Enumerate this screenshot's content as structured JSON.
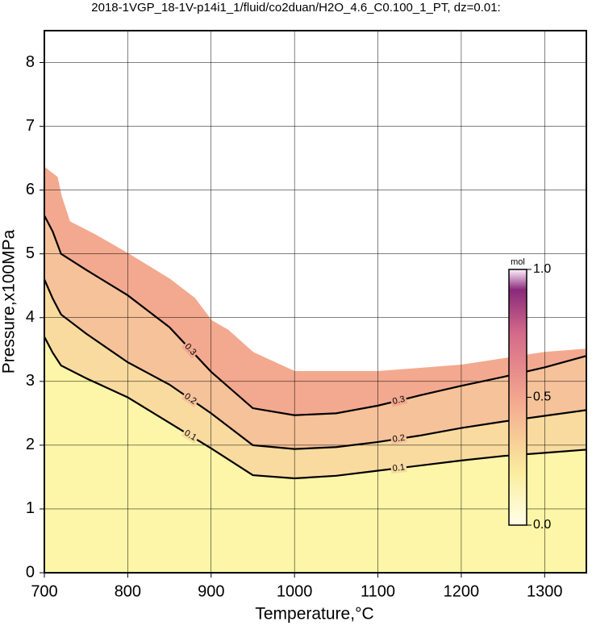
{
  "chart_data": {
    "type": "contour",
    "title": "2018-1VGP_18-1V-p14i1_1/fluid/co2duan/H2O_4.6_C0.100_1_PT, dz=0.01:",
    "x_label": "Temperature,°C",
    "y_label": "Pressure,x100MPa",
    "xlim": [
      700,
      1350
    ],
    "ylim": [
      0,
      8.5
    ],
    "xticks": [
      700,
      800,
      900,
      1000,
      1100,
      1200,
      1300
    ],
    "yticks": [
      0,
      1,
      2,
      3,
      4,
      5,
      6,
      7,
      8
    ],
    "grid": true,
    "boundary": {
      "x": [
        700,
        715,
        720,
        730,
        760,
        800,
        850,
        880,
        900,
        920,
        950,
        975,
        1000,
        1100,
        1200,
        1300,
        1350
      ],
      "y": [
        6.35,
        6.2,
        5.9,
        5.5,
        5.3,
        5.0,
        4.6,
        4.3,
        3.95,
        3.8,
        3.45,
        3.3,
        3.15,
        3.15,
        3.25,
        3.45,
        3.5
      ]
    },
    "contours": [
      {
        "level": 0.1,
        "color": "#000000",
        "x": [
          700,
          710,
          720,
          750,
          800,
          850,
          900,
          950,
          1000,
          1050,
          1100,
          1150,
          1200,
          1250,
          1300,
          1350
        ],
        "y": [
          3.7,
          3.45,
          3.25,
          3.05,
          2.75,
          2.35,
          1.95,
          1.53,
          1.48,
          1.52,
          1.6,
          1.68,
          1.76,
          1.83,
          1.88,
          1.93
        ]
      },
      {
        "level": 0.2,
        "color": "#000000",
        "x": [
          700,
          710,
          720,
          750,
          800,
          850,
          900,
          950,
          1000,
          1050,
          1100,
          1150,
          1200,
          1250,
          1300,
          1350
        ],
        "y": [
          4.6,
          4.3,
          4.05,
          3.75,
          3.3,
          2.95,
          2.5,
          2.0,
          1.94,
          1.97,
          2.05,
          2.15,
          2.27,
          2.37,
          2.46,
          2.55
        ]
      },
      {
        "level": 0.3,
        "color": "#000000",
        "x": [
          700,
          710,
          720,
          750,
          800,
          850,
          900,
          950,
          1000,
          1050,
          1100,
          1150,
          1200,
          1250,
          1300,
          1350
        ],
        "y": [
          5.6,
          5.35,
          5.0,
          4.75,
          4.35,
          3.85,
          3.15,
          2.58,
          2.47,
          2.5,
          2.62,
          2.78,
          2.93,
          3.07,
          3.22,
          3.4
        ]
      }
    ],
    "fills": [
      "#fdf6a8",
      "#f9dba0",
      "#f6c29a",
      "#f3a98f"
    ],
    "colorbar": {
      "label": "mol",
      "lim": [
        0,
        1
      ],
      "ticks": [
        {
          "value": 0,
          "label": "0.0"
        },
        0.5,
        {
          "value": 1,
          "label": "1.0"
        }
      ]
    }
  }
}
